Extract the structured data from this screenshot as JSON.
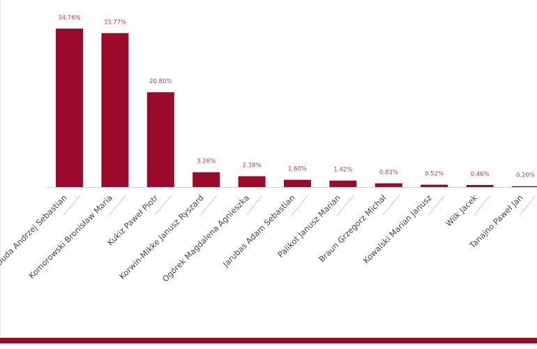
{
  "chart_data": {
    "type": "bar",
    "title": "",
    "xlabel": "",
    "ylabel": "",
    "ylim": [
      0,
      34.76
    ],
    "grid": false,
    "bar_color": "#9b0a2a",
    "label_color": "#b5404f",
    "categories": [
      "Duda Andrzej Sebastian",
      "Komorowski Bronisław Maria",
      "Kukiz Paweł Piotr",
      "Korwin-Mikke Janusz Ryszard",
      "Ogórek Magdalena Agnieszka",
      "Jarubas Adam Sebastian",
      "Palikot Janusz Marian",
      "Braun Grzegorz Michał",
      "Kowalski Marian Janusz",
      "Wilk Jacek",
      "Tanajno Paweł Jan"
    ],
    "values": [
      34.76,
      33.77,
      20.8,
      3.26,
      2.38,
      1.6,
      1.42,
      0.83,
      0.52,
      0.46,
      0.2
    ],
    "data_labels": [
      "34.76%",
      "33.77%",
      "20.80%",
      "3.26%",
      "2.38%",
      "1.60%",
      "1.42%",
      "0.83%",
      "0.52%",
      "0.46%",
      "0.20%"
    ]
  }
}
